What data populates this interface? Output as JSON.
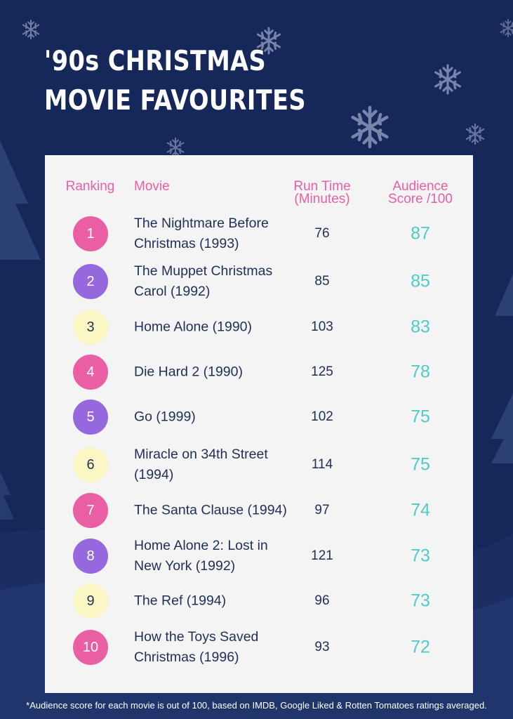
{
  "title_lines": [
    "'90s CHRISTMAS",
    "MOVIE FAVOURITES"
  ],
  "headers": {
    "ranking": "Ranking",
    "movie": "Movie",
    "run_time": [
      "Run Time",
      "(Minutes)"
    ],
    "score": [
      "Audience",
      "Score /100"
    ]
  },
  "rows": [
    {
      "rank": "1",
      "movie": "The Nightmare Before Christmas (1993)",
      "run": "76",
      "score": "87",
      "badge": "pink"
    },
    {
      "rank": "2",
      "movie": "The Muppet Christmas Carol (1992)",
      "run": "85",
      "score": "85",
      "badge": "purple"
    },
    {
      "rank": "3",
      "movie": "Home Alone (1990)",
      "run": "103",
      "score": "83",
      "badge": "yellow"
    },
    {
      "rank": "4",
      "movie": "Die Hard 2 (1990)",
      "run": "125",
      "score": "78",
      "badge": "pink"
    },
    {
      "rank": "5",
      "movie": "Go (1999)",
      "run": "102",
      "score": "75",
      "badge": "purple"
    },
    {
      "rank": "6",
      "movie": "Miracle on 34th Street (1994)",
      "run": "114",
      "score": "75",
      "badge": "yellow"
    },
    {
      "rank": "7",
      "movie": "The Santa Clause (1994)",
      "run": "97",
      "score": "74",
      "badge": "pink"
    },
    {
      "rank": "8",
      "movie": "Home Alone 2: Lost in New York (1992)",
      "run": "121",
      "score": "73",
      "badge": "purple"
    },
    {
      "rank": "9",
      "movie": "The Ref (1994)",
      "run": "96",
      "score": "73",
      "badge": "yellow"
    },
    {
      "rank": "10",
      "movie": "How the Toys Saved Christmas (1996)",
      "run": "93",
      "score": "72",
      "badge": "pink"
    }
  ],
  "footnote": "*Audience score for each movie is out of 100, based on IMDB, Google Liked & Rotten Tomatoes ratings averaged.",
  "colors": {
    "background": "#16275a",
    "card": "#f4f4f5",
    "header_text": "#ea5ea4",
    "score_text": "#4fcbc6",
    "badge_pink": "#ea5ea4",
    "badge_purple": "#9568de",
    "badge_yellow": "#fbf7c5"
  },
  "icons": [
    "snowflake-icon",
    "pine-tree-icon"
  ]
}
